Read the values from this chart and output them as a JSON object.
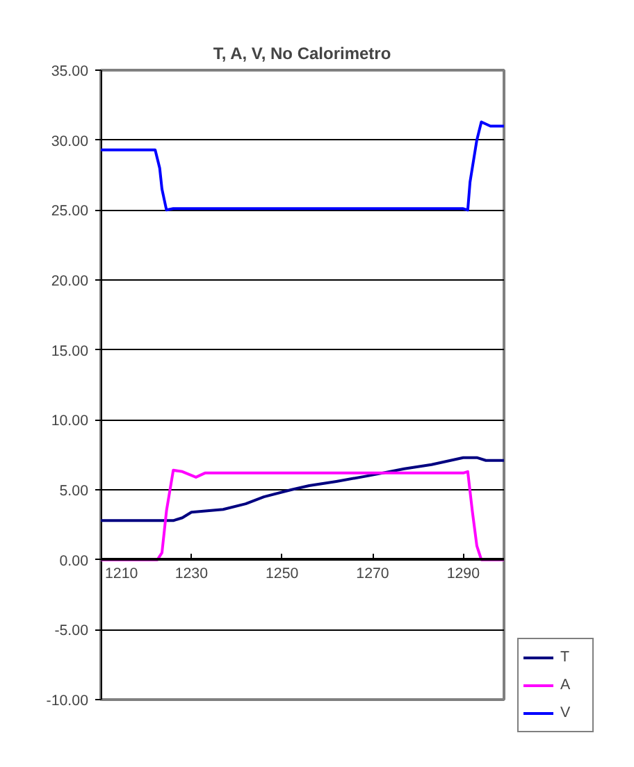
{
  "chart_data": {
    "type": "line",
    "title": "T, A, V, No Calorimetro",
    "xlim": [
      1210,
      1299
    ],
    "xticks": [
      1210,
      1230,
      1250,
      1270,
      1290
    ],
    "ylim": [
      -10,
      35
    ],
    "yticks": [
      {
        "value": -10,
        "label": "-10.00"
      },
      {
        "value": -5,
        "label": "-5.00"
      },
      {
        "value": 0,
        "label": "0.00"
      },
      {
        "value": 5,
        "label": "5.00"
      },
      {
        "value": 10,
        "label": "10.00"
      },
      {
        "value": 15,
        "label": "15.00"
      },
      {
        "value": 20,
        "label": "20.00"
      },
      {
        "value": 25,
        "label": "25.00"
      },
      {
        "value": 30,
        "label": "30.00"
      },
      {
        "value": 35,
        "label": "35.00"
      }
    ],
    "grid": "y",
    "legend": "bottom right",
    "series": [
      {
        "name": "T",
        "color": "#000080",
        "x": [
          1210,
          1226,
          1228,
          1230,
          1237,
          1242,
          1246,
          1252,
          1256,
          1262,
          1269,
          1277,
          1283,
          1290,
          1293,
          1295,
          1299
        ],
        "values": [
          2.8,
          2.8,
          3.0,
          3.4,
          3.6,
          4.0,
          4.5,
          5.0,
          5.3,
          5.6,
          6.0,
          6.5,
          6.8,
          7.3,
          7.3,
          7.1,
          7.1
        ]
      },
      {
        "name": "A",
        "color": "#ff00ff",
        "x": [
          1210,
          1222.5,
          1223.5,
          1224.5,
          1226,
          1228,
          1231,
          1233,
          1290,
          1291,
          1292,
          1293,
          1294,
          1295,
          1299
        ],
        "values": [
          0,
          0,
          0.5,
          3.5,
          6.4,
          6.3,
          5.9,
          6.2,
          6.2,
          6.3,
          3.5,
          1,
          0,
          0,
          0
        ]
      },
      {
        "name": "V",
        "color": "#0000ff",
        "x": [
          1210,
          1222,
          1223,
          1223.5,
          1224.5,
          1226,
          1290,
          1291,
          1291.5,
          1293,
          1294,
          1296,
          1299
        ],
        "values": [
          29.3,
          29.3,
          28,
          26.5,
          25,
          25.1,
          25.1,
          25,
          27,
          30,
          31.3,
          31,
          31
        ]
      }
    ]
  }
}
